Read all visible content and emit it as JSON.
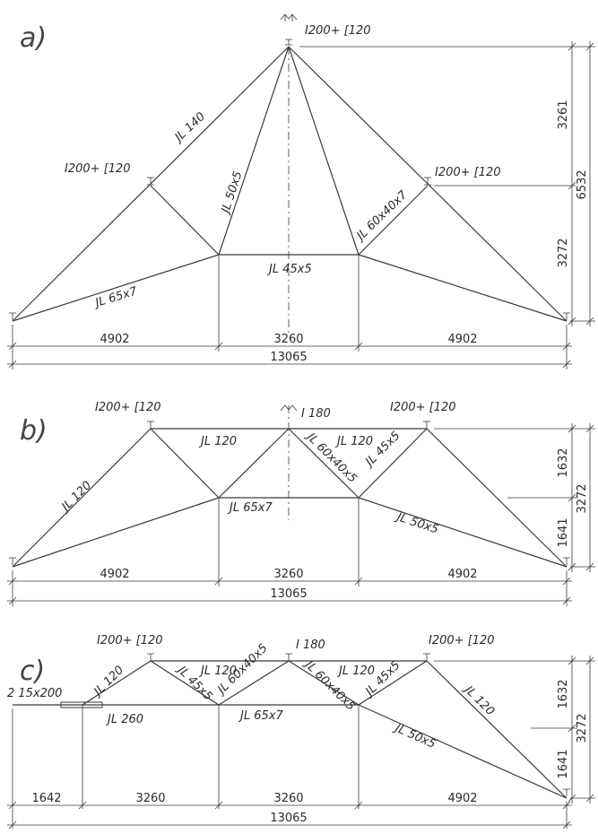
{
  "a": {
    "title": "a)",
    "labels": {
      "apex": "I200+ [120",
      "left_node": "I200+ [120",
      "right_node": "I200+ [120",
      "top_chord": "JL 140",
      "web_left": "JL 50x5",
      "web_right": "JL 60x40x7",
      "bottom_mid": "JL 45x5",
      "bottom_left": "JL 65x7"
    },
    "dims": {
      "d1": "4902",
      "d2": "3260",
      "d3": "4902",
      "total": "13065",
      "h1": "3261",
      "h2": "3272",
      "htotal": "6532"
    }
  },
  "b": {
    "title": "b)",
    "labels": {
      "left_node": "I200+ [120",
      "apex": "I 180",
      "right_node": "I200+ [120",
      "top_left": "JL 120",
      "inner_left": "JL 120",
      "inner_right": "JL 120",
      "diag": "JL 60x40x5",
      "diag2": "JL 45x5",
      "bottom_mid": "JL 65x7",
      "bottom_right": "JL 50x5"
    },
    "dims": {
      "d1": "4902",
      "d2": "3260",
      "d3": "4902",
      "total": "13065",
      "h1": "1632",
      "h2": "1641",
      "htotal": "3272"
    }
  },
  "c": {
    "title": "c)",
    "labels": {
      "left_node": "I200+ [120",
      "mid_top": "I 180",
      "right_node": "I200+ [120",
      "plate": "2 15x200",
      "left_chord": "JL 120",
      "diag1": "JL 45x5",
      "top1": "JL 120",
      "diag2": "JL 60x40x5",
      "diag3": "JL 60x40x5",
      "top2": "JL 120",
      "diag4": "JL 45x5",
      "right_chord": "JL 120",
      "left_bottom": "JL 260",
      "bottom_mid": "JL 65x7",
      "bottom_right": "JL 50x5"
    },
    "dims": {
      "d1": "1642",
      "d2": "3260",
      "d3": "3260",
      "d4": "4902",
      "total": "13065",
      "h1": "1632",
      "h2": "1641",
      "htotal": "3272"
    }
  }
}
